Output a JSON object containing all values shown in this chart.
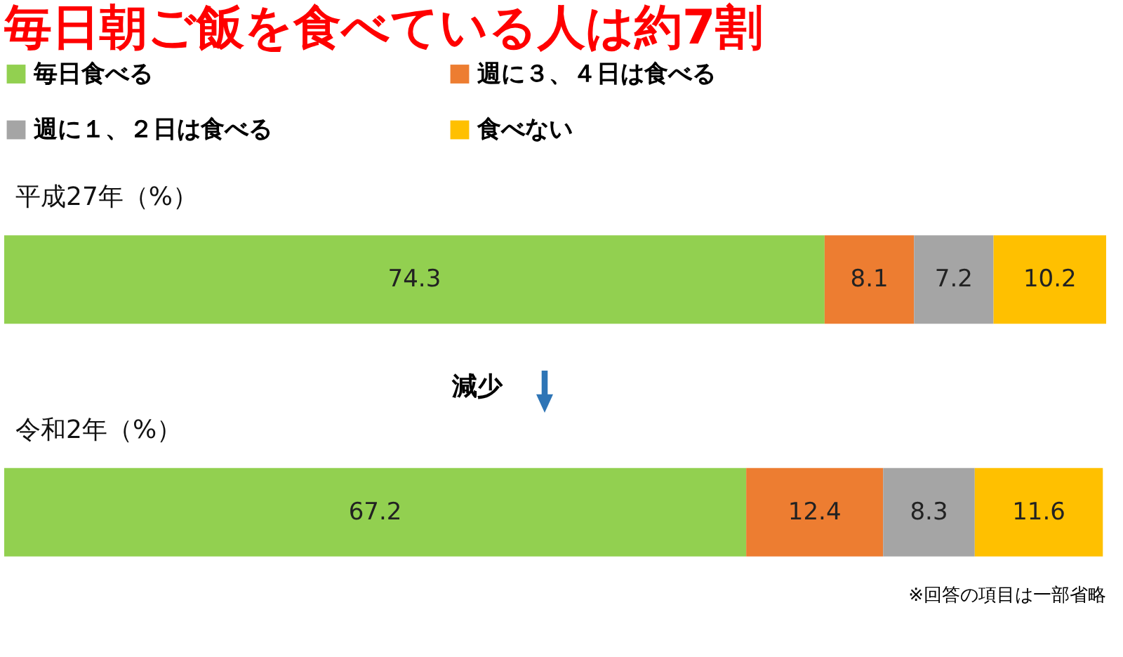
{
  "chart_data": {
    "type": "bar",
    "orientation": "horizontal",
    "stacked": true,
    "data_labels": true,
    "legend": "top",
    "tick_labels": false,
    "title": "毎日朝ご飯を食べている人は約7割",
    "categories": [
      "平成27年（%）",
      "令和2年（%）"
    ],
    "series": [
      {
        "name": "毎日食べる",
        "color": "#92d050",
        "values": [
          74.3,
          67.2
        ]
      },
      {
        "name": "週に３、４日は食べる",
        "color": "#ed7d31",
        "values": [
          8.1,
          12.4
        ]
      },
      {
        "name": "週に１、２日は食べる",
        "color": "#a5a5a5",
        "values": [
          7.2,
          8.3
        ]
      },
      {
        "name": "食べない",
        "color": "#ffc000",
        "values": [
          10.2,
          11.6
        ]
      }
    ],
    "annotations": [
      "減少",
      "※回答の項目は一部省略"
    ]
  }
}
